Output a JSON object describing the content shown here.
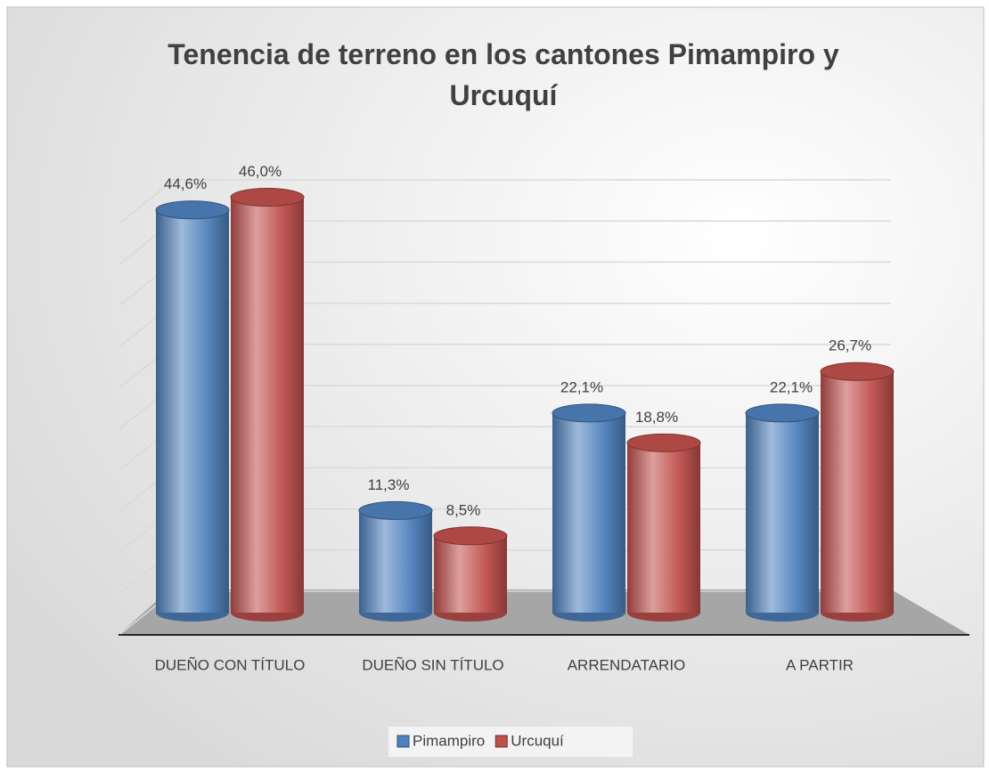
{
  "chart_data": {
    "type": "bar3d",
    "title": "Tenencia de terreno en los cantones Pimampiro y Urcuquí",
    "categories": [
      "DUEÑO CON TÍTULO",
      "DUEÑO SIN TÍTULO",
      "ARRENDATARIO",
      "A PARTIR"
    ],
    "series": [
      {
        "name": "Pimampiro",
        "color": "#4f81bd",
        "values": [
          44.6,
          11.3,
          22.1,
          22.1
        ],
        "value_labels": [
          "44,6%",
          "11,3%",
          "22,1%",
          "22,1%"
        ]
      },
      {
        "name": "Urcuquí",
        "color": "#c0504d",
        "values": [
          46.0,
          8.5,
          18.8,
          26.7
        ],
        "value_labels": [
          "46,0%",
          "8,5%",
          "18,8%",
          "26,7%"
        ]
      }
    ],
    "ylim": [
      0,
      50
    ],
    "yticks": [
      0,
      5,
      10,
      15,
      20,
      25,
      30,
      35,
      40,
      45,
      50
    ],
    "grid": true,
    "legend": "bottom"
  }
}
